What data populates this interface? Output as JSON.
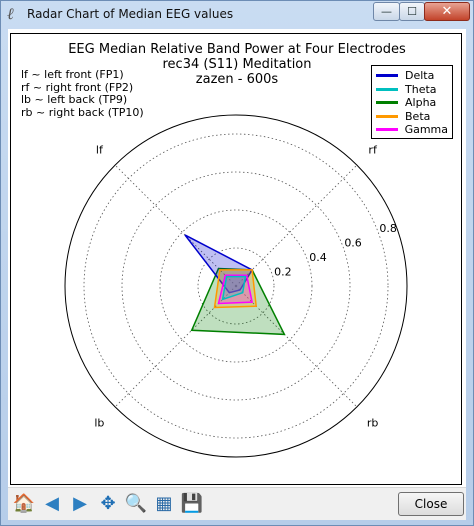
{
  "window": {
    "title": "Radar Chart of Median EEG values",
    "minimize_glyph": "—",
    "maximize_glyph": "☐",
    "close_glyph": "✕",
    "icon": "feather-icon"
  },
  "notes": [
    "lf ~ left front (FP1)",
    "rf ~ right front (FP2)",
    "lb ~ left back (TP9)",
    "rb ~ right back (TP10)"
  ],
  "toolbar": {
    "tools": [
      {
        "name": "home-icon",
        "label": "🏠",
        "color": "#b25a2a"
      },
      {
        "name": "back-arrow-icon",
        "label": "◀",
        "color": "#2d7fc1"
      },
      {
        "name": "forward-arrow-icon",
        "label": "▶",
        "color": "#2d7fc1"
      },
      {
        "name": "pan-icon",
        "label": "✥",
        "color": "#1f6fb5"
      },
      {
        "name": "zoom-icon",
        "label": "🔍",
        "color": "#3a78b0"
      },
      {
        "name": "configure-subplots-icon",
        "label": "▦",
        "color": "#2a6aa6"
      },
      {
        "name": "save-icon",
        "label": "💾",
        "color": "#2a4f8a"
      }
    ],
    "close_label": "Close"
  },
  "chart_data": {
    "type": "radar",
    "title_lines": [
      "EEG Median Relative Band Power at Four Electrodes",
      "rec34 (S11) Meditation",
      "zazen - 600s"
    ],
    "axes": [
      "rf",
      "lf",
      "lb",
      "rb"
    ],
    "axis_angles_deg": [
      45,
      135,
      225,
      315
    ],
    "radial_ticks": [
      0.2,
      0.4,
      0.6,
      0.8
    ],
    "rmax": 0.9,
    "grid": true,
    "legend_position": "top-right",
    "series": [
      {
        "name": "Delta",
        "color": "#0000cc",
        "values": [
          0.12,
          0.38,
          0.05,
          0.03
        ]
      },
      {
        "name": "Theta",
        "color": "#00bfbf",
        "values": [
          0.07,
          0.07,
          0.1,
          0.05
        ]
      },
      {
        "name": "Alpha",
        "color": "#008000",
        "values": [
          0.12,
          0.13,
          0.33,
          0.36
        ]
      },
      {
        "name": "Beta",
        "color": "#ff9900",
        "values": [
          0.12,
          0.12,
          0.16,
          0.15
        ]
      },
      {
        "name": "Gamma",
        "color": "#ff00ff",
        "values": [
          0.08,
          0.08,
          0.13,
          0.12
        ]
      }
    ]
  }
}
